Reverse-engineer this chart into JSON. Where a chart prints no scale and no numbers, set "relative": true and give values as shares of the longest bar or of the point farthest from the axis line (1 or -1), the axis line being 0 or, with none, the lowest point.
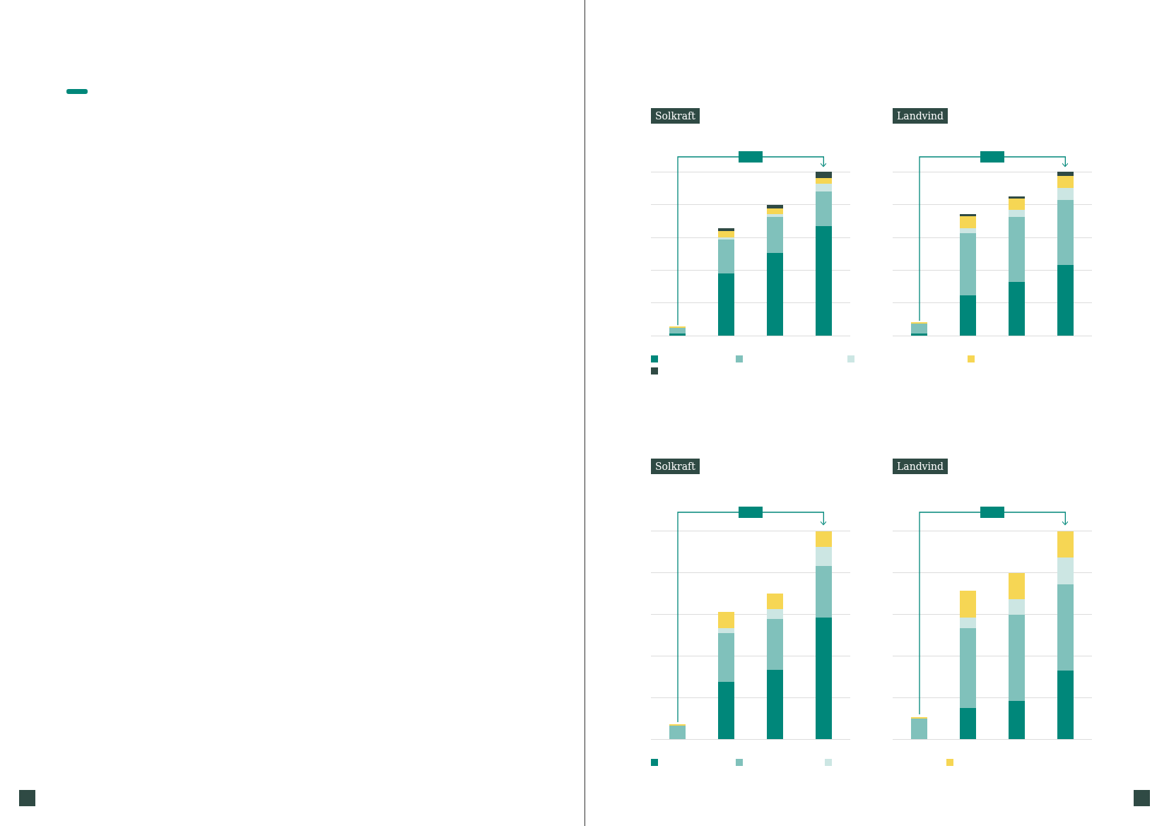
{
  "chart_data": [
    {
      "type": "bar",
      "title": "Solkraft",
      "stacked": true,
      "relative": true,
      "grid": "y",
      "categories": [
        null,
        null,
        null,
        null
      ],
      "series": [
        {
          "color": "#00877a",
          "values": [
            0.013,
            0.378,
            0.505,
            0.667
          ]
        },
        {
          "color": "#80c1bb",
          "values": [
            0.036,
            0.208,
            0.221,
            0.212
          ]
        },
        {
          "color": "#cce6e3",
          "values": [
            0,
            0.016,
            0.016,
            0.049
          ]
        },
        {
          "color": "#f6d654",
          "values": [
            0.007,
            0.036,
            0.036,
            0.036
          ]
        },
        {
          "color": "#2f4a44",
          "values": [
            0,
            0.016,
            0.02,
            0.036
          ]
        }
      ]
    },
    {
      "type": "bar",
      "title": "Landvind",
      "stacked": true,
      "relative": true,
      "grid": "y",
      "categories": [
        null,
        null,
        null,
        null
      ],
      "series": [
        {
          "color": "#00877a",
          "values": [
            0.011,
            0.244,
            0.326,
            0.431
          ]
        },
        {
          "color": "#80c1bb",
          "values": [
            0.063,
            0.381,
            0.398,
            0.398
          ]
        },
        {
          "color": "#cce6e3",
          "values": [
            0,
            0.029,
            0.046,
            0.074
          ]
        },
        {
          "color": "#f6d654",
          "values": [
            0.006,
            0.076,
            0.069,
            0.074
          ]
        },
        {
          "color": "#2f4a44",
          "values": [
            0,
            0.013,
            0.013,
            0.023
          ]
        }
      ]
    },
    {
      "type": "bar",
      "title": "Solkraft",
      "stacked": true,
      "relative": true,
      "grid": "y",
      "categories": [
        null,
        null,
        null,
        null
      ],
      "series": [
        {
          "color": "#00877a",
          "values": [
            0,
            0.276,
            0.334,
            0.585
          ]
        },
        {
          "color": "#80c1bb",
          "values": [
            0.063,
            0.234,
            0.244,
            0.249
          ]
        },
        {
          "color": "#cce6e3",
          "values": [
            0,
            0.024,
            0.046,
            0.09
          ]
        },
        {
          "color": "#f6d654",
          "values": [
            0.01,
            0.078,
            0.076,
            0.076
          ]
        }
      ]
    },
    {
      "type": "bar",
      "title": "Landvind",
      "stacked": true,
      "relative": true,
      "grid": "y",
      "categories": [
        null,
        null,
        null,
        null
      ],
      "series": [
        {
          "color": "#00877a",
          "values": [
            0,
            0.151,
            0.185,
            0.33
          ]
        },
        {
          "color": "#80c1bb",
          "values": [
            0.099,
            0.383,
            0.412,
            0.416
          ]
        },
        {
          "color": "#cce6e3",
          "values": [
            0,
            0.051,
            0.076,
            0.127
          ]
        },
        {
          "color": "#f6d654",
          "values": [
            0.008,
            0.129,
            0.126,
            0.127
          ]
        }
      ]
    }
  ]
}
